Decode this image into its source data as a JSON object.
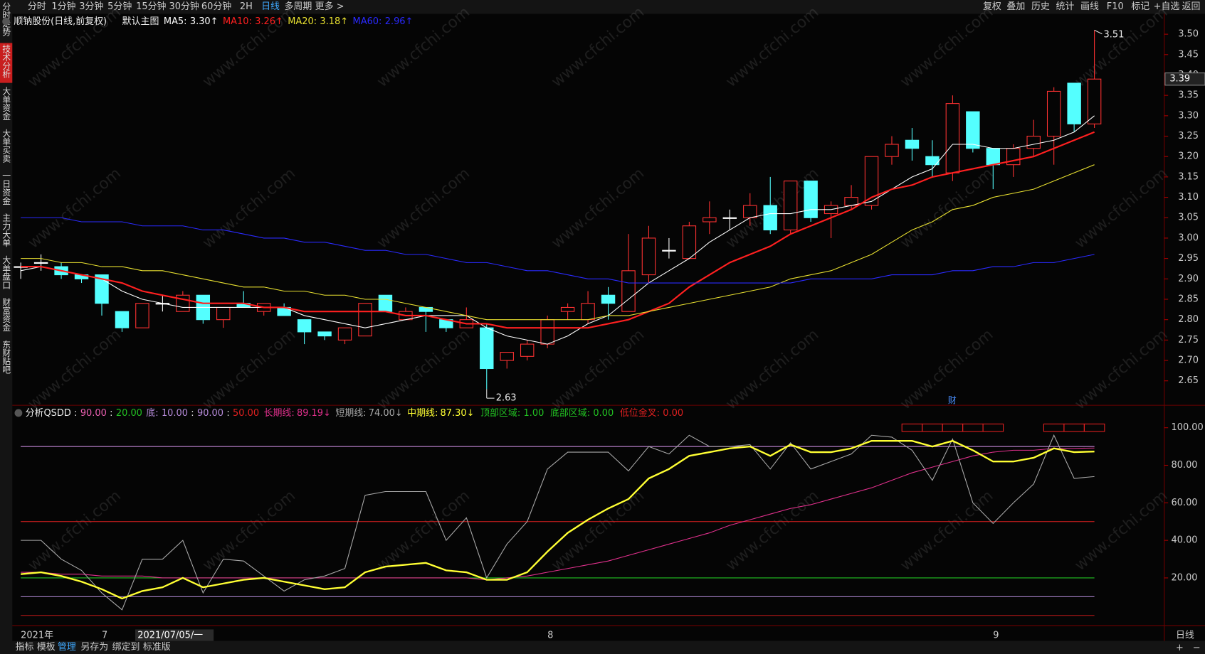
{
  "toolbar": {
    "left": [
      "分时",
      "1分钟",
      "3分钟",
      "5分钟",
      "15分钟",
      "30分钟",
      "60分钟",
      "2H",
      "日线",
      "多周期",
      "更多 >"
    ],
    "left_active": 8,
    "right": [
      "复权",
      "叠加",
      "历史",
      "统计",
      "画线",
      "F10",
      "标记",
      "+自选",
      "返回"
    ]
  },
  "sidebar": {
    "items": [
      "分时走势",
      "技术分析",
      "大单资金",
      "大单买卖",
      "一日资金",
      "主力大单",
      "大单盘口",
      "财富资金",
      "东财贴吧"
    ],
    "active": 1
  },
  "footer": {
    "items": [
      "指标",
      "模板",
      "管理",
      "另存为",
      "绑定到",
      "标准版"
    ],
    "active": 2,
    "period": "日线",
    "zoom_in": "+",
    "zoom_out": "−"
  },
  "watermark": "www.cfchi.com",
  "cursor_date": "2021/07/05/一",
  "chart_data": [
    {
      "type": "candlestick",
      "title": "顺钠股份(日线,前复权)",
      "subtitle": "默认主图",
      "colon": ":",
      "news_marker": "财",
      "categories": [
        "2021年",
        null,
        null,
        null,
        "7",
        null,
        null,
        null,
        null,
        null,
        null,
        null,
        null,
        null,
        null,
        null,
        null,
        null,
        null,
        null,
        null,
        null,
        null,
        null,
        null,
        null,
        "8",
        null,
        null,
        null,
        null,
        null,
        null,
        null,
        null,
        null,
        null,
        null,
        null,
        null,
        null,
        null,
        null,
        null,
        null,
        null,
        null,
        null,
        "9",
        null,
        null,
        null,
        null,
        null
      ],
      "open": [
        2.93,
        2.94,
        2.93,
        2.91,
        2.91,
        2.82,
        2.78,
        2.84,
        2.82,
        2.86,
        2.8,
        2.84,
        2.82,
        2.83,
        2.8,
        2.77,
        2.75,
        2.76,
        2.86,
        2.8,
        2.83,
        2.8,
        2.78,
        2.78,
        2.7,
        2.71,
        2.74,
        2.82,
        2.8,
        2.86,
        2.82,
        2.91,
        2.97,
        2.95,
        3.04,
        3.05,
        3.05,
        3.08,
        3.02,
        3.14,
        3.06,
        3.08,
        3.08,
        3.2,
        3.24,
        3.2,
        3.16,
        3.31,
        3.22,
        3.18,
        3.22,
        3.25,
        3.38,
        3.28
      ],
      "high": [
        2.94,
        2.96,
        2.94,
        2.91,
        2.91,
        2.82,
        2.84,
        2.86,
        2.87,
        2.86,
        2.83,
        2.87,
        2.84,
        2.84,
        2.8,
        2.77,
        2.78,
        2.84,
        2.86,
        2.83,
        2.83,
        2.8,
        2.83,
        2.79,
        2.72,
        2.75,
        2.81,
        2.84,
        2.87,
        2.88,
        3.01,
        3.03,
        3.0,
        3.04,
        3.09,
        3.07,
        3.11,
        3.15,
        3.14,
        3.14,
        3.09,
        3.13,
        3.2,
        3.25,
        3.27,
        3.24,
        3.35,
        3.31,
        3.22,
        3.23,
        3.29,
        3.37,
        3.38,
        3.51
      ],
      "low": [
        2.9,
        2.92,
        2.9,
        2.89,
        2.81,
        2.77,
        2.78,
        2.82,
        2.82,
        2.79,
        2.78,
        2.83,
        2.81,
        2.81,
        2.74,
        2.75,
        2.74,
        2.76,
        2.82,
        2.8,
        2.77,
        2.77,
        2.78,
        2.63,
        2.68,
        2.7,
        2.73,
        2.8,
        2.79,
        2.8,
        2.82,
        2.89,
        2.95,
        2.95,
        3.01,
        3.02,
        3.03,
        3.01,
        3.01,
        3.04,
        3.0,
        3.07,
        3.07,
        3.18,
        3.19,
        3.15,
        3.14,
        3.21,
        3.12,
        3.15,
        3.2,
        3.18,
        3.26,
        3.27
      ],
      "close": [
        2.93,
        2.94,
        2.91,
        2.9,
        2.84,
        2.78,
        2.84,
        2.84,
        2.86,
        2.8,
        2.83,
        2.83,
        2.84,
        2.81,
        2.77,
        2.76,
        2.78,
        2.84,
        2.82,
        2.82,
        2.82,
        2.78,
        2.8,
        2.68,
        2.72,
        2.74,
        2.8,
        2.83,
        2.84,
        2.84,
        2.92,
        3.0,
        2.97,
        3.03,
        3.05,
        3.05,
        3.08,
        3.02,
        3.14,
        3.05,
        3.08,
        3.1,
        3.2,
        3.23,
        3.22,
        3.18,
        3.33,
        3.22,
        3.18,
        3.22,
        3.25,
        3.36,
        3.28,
        3.39
      ],
      "up_color": "#ff3232",
      "down_color": "#54ffff",
      "flat_color": "#ffffff",
      "series": [
        {
          "name": "MA5",
          "color": "#ffffff",
          "value_label": "3.30↑",
          "values": [
            2.92,
            2.93,
            2.92,
            2.91,
            2.9,
            2.87,
            2.85,
            2.84,
            2.83,
            2.83,
            2.83,
            2.83,
            2.83,
            2.83,
            2.81,
            2.8,
            2.79,
            2.78,
            2.79,
            2.8,
            2.81,
            2.81,
            2.81,
            2.78,
            2.76,
            2.75,
            2.74,
            2.76,
            2.79,
            2.81,
            2.85,
            2.89,
            2.92,
            2.95,
            2.99,
            3.02,
            3.05,
            3.06,
            3.06,
            3.07,
            3.07,
            3.08,
            3.09,
            3.12,
            3.15,
            3.17,
            3.23,
            3.23,
            3.22,
            3.22,
            3.23,
            3.24,
            3.26,
            3.3
          ]
        },
        {
          "name": "MA10",
          "color": "#ff2020",
          "value_label": "3.26↑",
          "values": [
            2.93,
            2.93,
            2.92,
            2.91,
            2.9,
            2.89,
            2.87,
            2.86,
            2.85,
            2.84,
            2.84,
            2.84,
            2.83,
            2.83,
            2.82,
            2.82,
            2.82,
            2.82,
            2.82,
            2.81,
            2.81,
            2.8,
            2.79,
            2.79,
            2.78,
            2.78,
            2.78,
            2.78,
            2.78,
            2.79,
            2.8,
            2.82,
            2.84,
            2.88,
            2.91,
            2.94,
            2.96,
            2.98,
            3.01,
            3.03,
            3.05,
            3.07,
            3.1,
            3.12,
            3.13,
            3.15,
            3.16,
            3.17,
            3.18,
            3.19,
            3.2,
            3.22,
            3.24,
            3.26
          ]
        },
        {
          "name": "MA20",
          "color": "#e8e030",
          "value_label": "3.18↑",
          "values": [
            2.95,
            2.95,
            2.94,
            2.94,
            2.93,
            2.93,
            2.92,
            2.92,
            2.91,
            2.9,
            2.89,
            2.88,
            2.88,
            2.87,
            2.87,
            2.86,
            2.86,
            2.85,
            2.85,
            2.84,
            2.83,
            2.82,
            2.81,
            2.8,
            2.8,
            2.8,
            2.8,
            2.8,
            2.8,
            2.81,
            2.81,
            2.82,
            2.83,
            2.84,
            2.85,
            2.86,
            2.87,
            2.88,
            2.9,
            2.91,
            2.92,
            2.94,
            2.96,
            2.99,
            3.02,
            3.04,
            3.07,
            3.08,
            3.1,
            3.11,
            3.12,
            3.14,
            3.16,
            3.18
          ]
        },
        {
          "name": "MA60",
          "color": "#2a2aff",
          "value_label": "2.96↑",
          "values": [
            3.05,
            3.05,
            3.05,
            3.04,
            3.04,
            3.04,
            3.03,
            3.03,
            3.03,
            3.02,
            3.02,
            3.01,
            3.0,
            3.0,
            2.99,
            2.99,
            2.98,
            2.97,
            2.97,
            2.96,
            2.96,
            2.95,
            2.94,
            2.94,
            2.93,
            2.92,
            2.92,
            2.91,
            2.9,
            2.9,
            2.89,
            2.89,
            2.89,
            2.89,
            2.89,
            2.89,
            2.89,
            2.89,
            2.89,
            2.9,
            2.9,
            2.9,
            2.9,
            2.91,
            2.91,
            2.91,
            2.92,
            2.92,
            2.93,
            2.93,
            2.94,
            2.94,
            2.95,
            2.96
          ]
        }
      ],
      "ylim": [
        2.59,
        3.55
      ],
      "yticks": [
        {
          "value": 3.5,
          "label": "3.50"
        },
        {
          "value": 3.45,
          "label": "3.45"
        },
        {
          "value": 3.4,
          "label": "3.40"
        },
        {
          "value": 3.35,
          "label": "3.35"
        },
        {
          "value": 3.3,
          "label": "3.30"
        },
        {
          "value": 3.25,
          "label": "3.25"
        },
        {
          "value": 3.2,
          "label": "3.20"
        },
        {
          "value": 3.15,
          "label": "3.15"
        },
        {
          "value": 3.1,
          "label": "3.10"
        },
        {
          "value": 3.05,
          "label": "3.05"
        },
        {
          "value": 3.0,
          "label": "3.00"
        },
        {
          "value": 2.95,
          "label": "2.95"
        },
        {
          "value": 2.9,
          "label": "2.90"
        },
        {
          "value": 2.85,
          "label": "2.85"
        },
        {
          "value": 2.8,
          "label": "2.80"
        },
        {
          "value": 2.75,
          "label": "2.75"
        },
        {
          "value": 2.7,
          "label": "2.70"
        },
        {
          "value": 2.65,
          "label": "2.65"
        }
      ]
    },
    {
      "type": "line",
      "title": "分析QSDD",
      "colon": ":",
      "ref_lines": [
        {
          "value": 90,
          "label": "90.00",
          "color": "#ea5fb0"
        },
        {
          "value": 20,
          "label": "20.00",
          "color": "#22c022"
        },
        {
          "name": "底",
          "value": 10,
          "label": "10.00",
          "color": "#b58ad8"
        },
        {
          "value": 90,
          "label": "90.00",
          "color": "#b58ad8"
        },
        {
          "value": 50,
          "label": "50.00",
          "color": "#e02020"
        }
      ],
      "series": [
        {
          "name": "长期线",
          "color": "#e0308c",
          "value_label": "89.19↓",
          "values": [
            23,
            23,
            22,
            22,
            21,
            21,
            21,
            20,
            20,
            20,
            20,
            20,
            20,
            20,
            20,
            20,
            20,
            20,
            20,
            20,
            20,
            20,
            20,
            19,
            20,
            21,
            23,
            25,
            27,
            29,
            32,
            35,
            38,
            41,
            44,
            48,
            51,
            54,
            57,
            59,
            62,
            65,
            68,
            72,
            76,
            79,
            82,
            85,
            87,
            88,
            88,
            89,
            89,
            89.19
          ]
        },
        {
          "name": "短期线",
          "color": "#a8a8a8",
          "value_label": "74.00↓",
          "values": [
            40,
            40,
            30,
            24,
            12,
            3,
            30,
            30,
            40,
            12,
            30,
            29,
            21,
            13,
            19,
            21,
            25,
            64,
            66,
            66,
            66,
            40,
            52,
            20,
            38,
            50,
            78,
            87,
            87,
            87,
            77,
            90,
            86,
            96,
            90,
            90,
            91,
            78,
            92,
            78,
            82,
            86,
            96,
            95,
            88,
            72,
            94,
            60,
            49,
            60,
            70,
            96,
            73,
            74
          ]
        },
        {
          "name": "中期线",
          "color": "#ffff33",
          "value_label": "87.30↓",
          "values": [
            22,
            23,
            21,
            18,
            14,
            9,
            13,
            15,
            20,
            15,
            17,
            19,
            20,
            18,
            16,
            14,
            15,
            23,
            26,
            27,
            28,
            24,
            23,
            19,
            19,
            23,
            34,
            44,
            51,
            57,
            62,
            73,
            78,
            85,
            87,
            89,
            90,
            85,
            91,
            87,
            87,
            89,
            93,
            93,
            93,
            90,
            93,
            88,
            82,
            82,
            84,
            89,
            87,
            87.3
          ]
        }
      ],
      "flags": [
        {
          "name": "顶部区域",
          "value": 1,
          "label": "1.00",
          "color": "#22c022"
        },
        {
          "name": "底部区域",
          "value": 0,
          "label": "0.00",
          "color": "#22c022"
        },
        {
          "name": "低位金叉",
          "value": 0,
          "label": "0.00",
          "color": "#e02020"
        }
      ],
      "top_zone": [
        0,
        0,
        0,
        0,
        0,
        0,
        0,
        0,
        0,
        0,
        0,
        0,
        0,
        0,
        0,
        0,
        0,
        0,
        0,
        0,
        0,
        0,
        0,
        0,
        0,
        0,
        0,
        0,
        0,
        0,
        0,
        0,
        0,
        0,
        0,
        0,
        0,
        0,
        0,
        0,
        0,
        0,
        0,
        0,
        1,
        1,
        1,
        1,
        1,
        0,
        0,
        1,
        1,
        1
      ],
      "ylim": [
        -5,
        105
      ],
      "yticks": [
        {
          "value": 100,
          "label": "100.00"
        },
        {
          "value": 80,
          "label": "80.00"
        },
        {
          "value": 60,
          "label": "60.00"
        },
        {
          "value": 40,
          "label": "40.00"
        },
        {
          "value": 20,
          "label": "20.00"
        }
      ]
    }
  ]
}
